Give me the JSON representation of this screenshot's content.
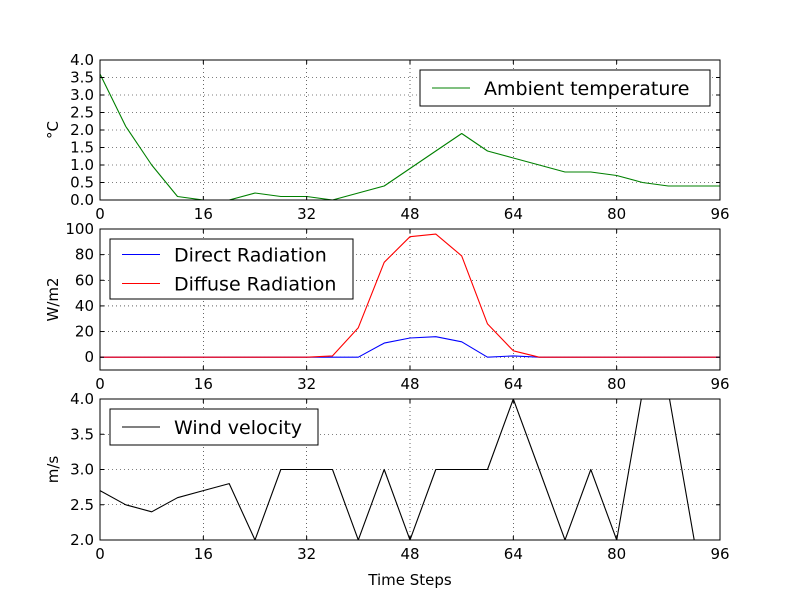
{
  "chart_data": [
    {
      "type": "line",
      "xlabel": "",
      "ylabel": "°C",
      "xlim": [
        0,
        96
      ],
      "ylim": [
        0,
        4
      ],
      "xticks": [
        0,
        16,
        32,
        48,
        64,
        80,
        96
      ],
      "xtick_labels": [
        "0",
        "16",
        "32",
        "48",
        "64",
        "80",
        "96"
      ],
      "yticks": [
        0,
        0.5,
        1,
        1.5,
        2,
        2.5,
        3,
        3.5,
        4
      ],
      "ytick_labels": [
        "0.0",
        "0.5",
        "1.0",
        "1.5",
        "2.0",
        "2.5",
        "3.0",
        "3.5",
        "4.0"
      ],
      "grid": true,
      "legend_position": "top-right",
      "x": [
        0,
        4,
        8,
        12,
        16,
        20,
        24,
        28,
        32,
        36,
        40,
        44,
        48,
        52,
        56,
        60,
        64,
        68,
        72,
        76,
        80,
        84,
        88,
        92,
        96
      ],
      "series": [
        {
          "name": "Ambient temperature",
          "color": "#008000",
          "values": [
            3.6,
            2.1,
            1.0,
            0.1,
            0.0,
            0.0,
            0.2,
            0.1,
            0.1,
            0.0,
            0.2,
            0.4,
            0.9,
            1.4,
            1.9,
            1.4,
            1.2,
            1.0,
            0.8,
            0.8,
            0.7,
            0.5,
            0.4,
            0.4,
            0.4
          ]
        }
      ]
    },
    {
      "type": "line",
      "xlabel": "",
      "ylabel": "W/m2",
      "xlim": [
        0,
        96
      ],
      "ylim": [
        -10,
        100
      ],
      "xticks": [
        0,
        16,
        32,
        48,
        64,
        80,
        96
      ],
      "xtick_labels": [
        "0",
        "16",
        "32",
        "48",
        "64",
        "80",
        "96"
      ],
      "yticks": [
        0,
        20,
        40,
        60,
        80,
        100
      ],
      "ytick_labels": [
        "0",
        "20",
        "40",
        "60",
        "80",
        "100"
      ],
      "grid": true,
      "legend_position": "top-left",
      "x": [
        0,
        4,
        8,
        12,
        16,
        20,
        24,
        28,
        32,
        36,
        40,
        44,
        48,
        52,
        56,
        60,
        64,
        68,
        72,
        76,
        80,
        84,
        88,
        92,
        96
      ],
      "series": [
        {
          "name": "Direct Radiation",
          "color": "#0000ff",
          "values": [
            0,
            0,
            0,
            0,
            0,
            0,
            0,
            0,
            0,
            0,
            0,
            11,
            15,
            16,
            12,
            0,
            1,
            0,
            0,
            0,
            0,
            0,
            0,
            0,
            0
          ]
        },
        {
          "name": "Diffuse Radiation",
          "color": "#ff0000",
          "values": [
            0,
            0,
            0,
            0,
            0,
            0,
            0,
            0,
            0,
            1,
            23,
            74,
            94,
            96,
            79,
            26,
            5,
            0,
            0,
            0,
            0,
            0,
            0,
            0,
            0
          ]
        }
      ]
    },
    {
      "type": "line",
      "xlabel": "Time Steps",
      "ylabel": "m/s",
      "xlim": [
        0,
        96
      ],
      "ylim": [
        2.0,
        4.0
      ],
      "xticks": [
        0,
        16,
        32,
        48,
        64,
        80,
        96
      ],
      "xtick_labels": [
        "0",
        "16",
        "32",
        "48",
        "64",
        "80",
        "96"
      ],
      "yticks": [
        2.0,
        2.5,
        3.0,
        3.5,
        4.0
      ],
      "ytick_labels": [
        "2.0",
        "2.5",
        "3.0",
        "3.5",
        "4.0"
      ],
      "grid": true,
      "legend_position": "top-left",
      "x": [
        0,
        4,
        8,
        12,
        16,
        20,
        24,
        28,
        32,
        36,
        40,
        44,
        48,
        52,
        56,
        60,
        64,
        68,
        72,
        76,
        80,
        84,
        88,
        92,
        96
      ],
      "series": [
        {
          "name": "Wind velocity",
          "color": "#000000",
          "values": [
            2.7,
            2.5,
            2.4,
            2.6,
            2.7,
            2.8,
            2.0,
            3.0,
            3.0,
            3.0,
            2.0,
            3.0,
            2.0,
            3.0,
            3.0,
            3.0,
            4.0,
            3.0,
            2.0,
            3.0,
            2.0,
            4.1,
            4.1,
            2.0,
            2.0
          ]
        }
      ]
    }
  ]
}
